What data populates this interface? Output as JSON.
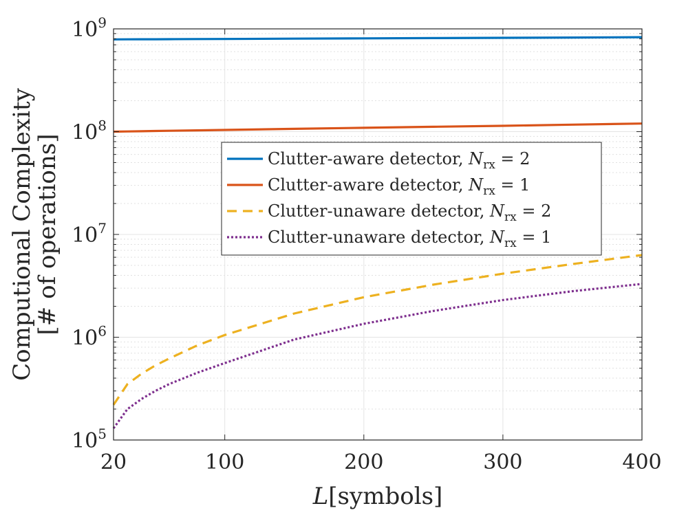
{
  "chart_data": {
    "type": "line",
    "xscale": "linear",
    "yscale": "log",
    "xlim": [
      20,
      400
    ],
    "ylim": [
      100000,
      1000000000
    ],
    "grid": true,
    "minor_grid": true,
    "legend_position": "upper-center",
    "xlabel": {
      "main": "L",
      "unit": "[symbols]"
    },
    "ylabel": {
      "line1": "Computional Complexity",
      "line2": "[# of operations]"
    },
    "x_ticks": [
      {
        "value": 20,
        "label": "20"
      },
      {
        "value": 100,
        "label": "100"
      },
      {
        "value": 200,
        "label": "200"
      },
      {
        "value": 300,
        "label": "300"
      },
      {
        "value": 400,
        "label": "400"
      }
    ],
    "y_ticks": [
      {
        "value": 100000,
        "base": "10",
        "exp": "5"
      },
      {
        "value": 1000000,
        "base": "10",
        "exp": "6"
      },
      {
        "value": 10000000,
        "base": "10",
        "exp": "7"
      },
      {
        "value": 100000000,
        "base": "10",
        "exp": "8"
      },
      {
        "value": 1000000000,
        "base": "10",
        "exp": "9"
      }
    ],
    "x": [
      20,
      30,
      40,
      50,
      60,
      80,
      100,
      150,
      200,
      250,
      300,
      350,
      400
    ],
    "series": [
      {
        "name": "Clutter-aware detector, N_rx = 2",
        "label_prefix": "Clutter-aware detector, ",
        "n_rx": "2",
        "color": "#0072BD",
        "dash": "solid",
        "values": [
          790000000,
          791000000,
          792000000,
          793000000,
          794000000,
          796000000,
          798000000,
          803000000,
          808000000,
          813000000,
          818000000,
          823000000,
          830000000
        ]
      },
      {
        "name": "Clutter-aware detector, N_rx = 1",
        "label_prefix": "Clutter-aware detector, ",
        "n_rx": "1",
        "color": "#D95319",
        "dash": "solid",
        "values": [
          100000000,
          100500000,
          101000000,
          101500000,
          102000000,
          103000000,
          104000000,
          106500000,
          109000000,
          111500000,
          114000000,
          117000000,
          120000000
        ]
      },
      {
        "name": "Clutter-unaware detector, N_rx = 2",
        "label_prefix": "Clutter-unaware detector, ",
        "n_rx": "2",
        "color": "#EDB120",
        "dash": "dashed",
        "values": [
          220000.0,
          350000,
          440000,
          530000,
          620000,
          830000,
          1050000,
          1700000,
          2450000,
          3250000,
          4150000,
          5150000,
          6300000
        ]
      },
      {
        "name": "Clutter-unaware detector, N_rx = 1",
        "label_prefix": "Clutter-unaware detector, ",
        "n_rx": "1",
        "color": "#7E2F8E",
        "dash": "dotted",
        "values": [
          130000,
          200000,
          250000,
          300000,
          350000,
          450000,
          560000,
          950000,
          1350000,
          1800000,
          2300000,
          2800000,
          3300000
        ]
      }
    ]
  },
  "legend": {
    "var_symbol": "N",
    "var_subscript": "rx",
    "equals": "="
  }
}
